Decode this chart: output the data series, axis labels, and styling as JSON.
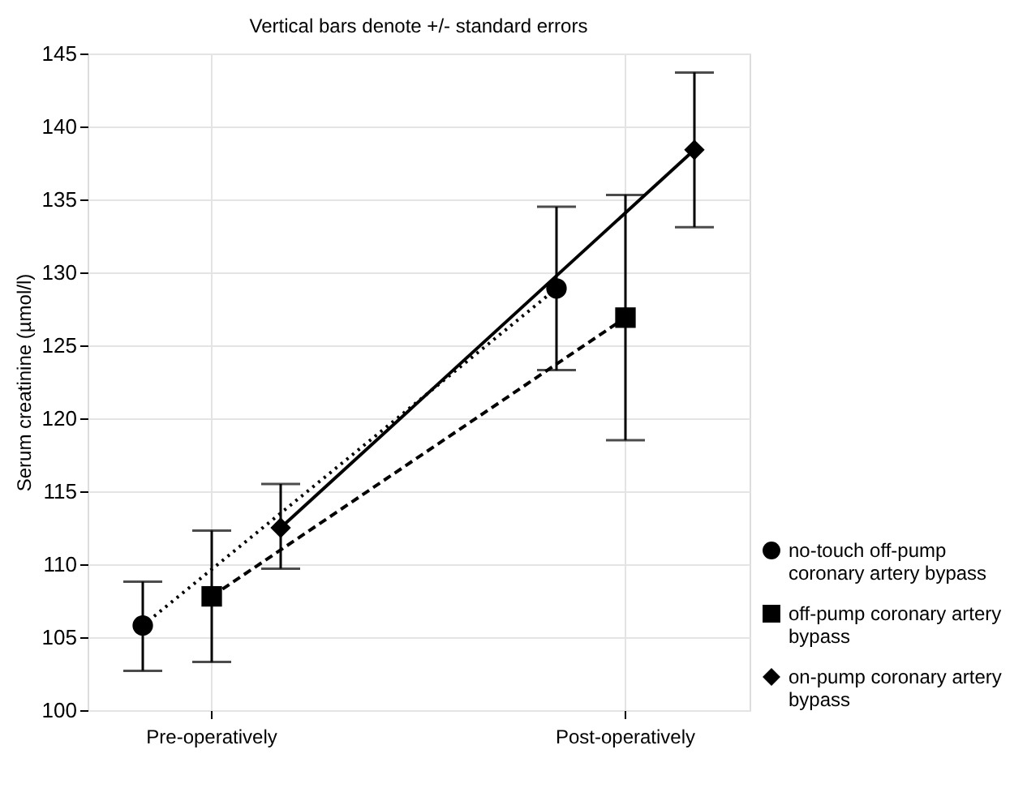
{
  "chart_data": {
    "type": "line",
    "title": "Vertical bars denote +/- standard errors",
    "ylabel": "Serum creatinine (µmol/l)",
    "categories": [
      null,
      "Pre-operatively",
      null,
      null,
      null,
      null,
      null,
      "Post-operatively",
      null
    ],
    "ylim": [
      100,
      145
    ],
    "yticks": [
      100,
      105,
      110,
      115,
      120,
      125,
      130,
      135,
      140,
      145
    ],
    "grid": true,
    "legend": "bottom right",
    "series": [
      {
        "name": "no-touch off-pump coronary artery bypass",
        "color": "#000000",
        "marker": "circle",
        "line_style": "dotted",
        "values": [
          105.8,
          null,
          null,
          null,
          null,
          null,
          128.9,
          null,
          null
        ],
        "errors": [
          [
            102.7,
            108.8
          ],
          null,
          null,
          null,
          null,
          null,
          [
            123.3,
            134.5
          ],
          null,
          null
        ]
      },
      {
        "name": "off-pump coronary artery bypass",
        "color": "#000000",
        "marker": "square",
        "line_style": "dashed",
        "values": [
          null,
          107.8,
          null,
          null,
          null,
          null,
          null,
          126.9,
          null
        ],
        "errors": [
          null,
          [
            103.3,
            112.3
          ],
          null,
          null,
          null,
          null,
          null,
          [
            118.5,
            135.3
          ],
          null
        ]
      },
      {
        "name": "on-pump coronary artery bypass",
        "color": "#000000",
        "marker": "diamond",
        "line_style": "solid",
        "values": [
          null,
          null,
          112.5,
          null,
          null,
          null,
          null,
          null,
          138.4
        ],
        "errors": [
          null,
          null,
          [
            109.7,
            115.5
          ],
          null,
          null,
          null,
          null,
          null,
          [
            133.1,
            143.7
          ]
        ]
      }
    ]
  }
}
